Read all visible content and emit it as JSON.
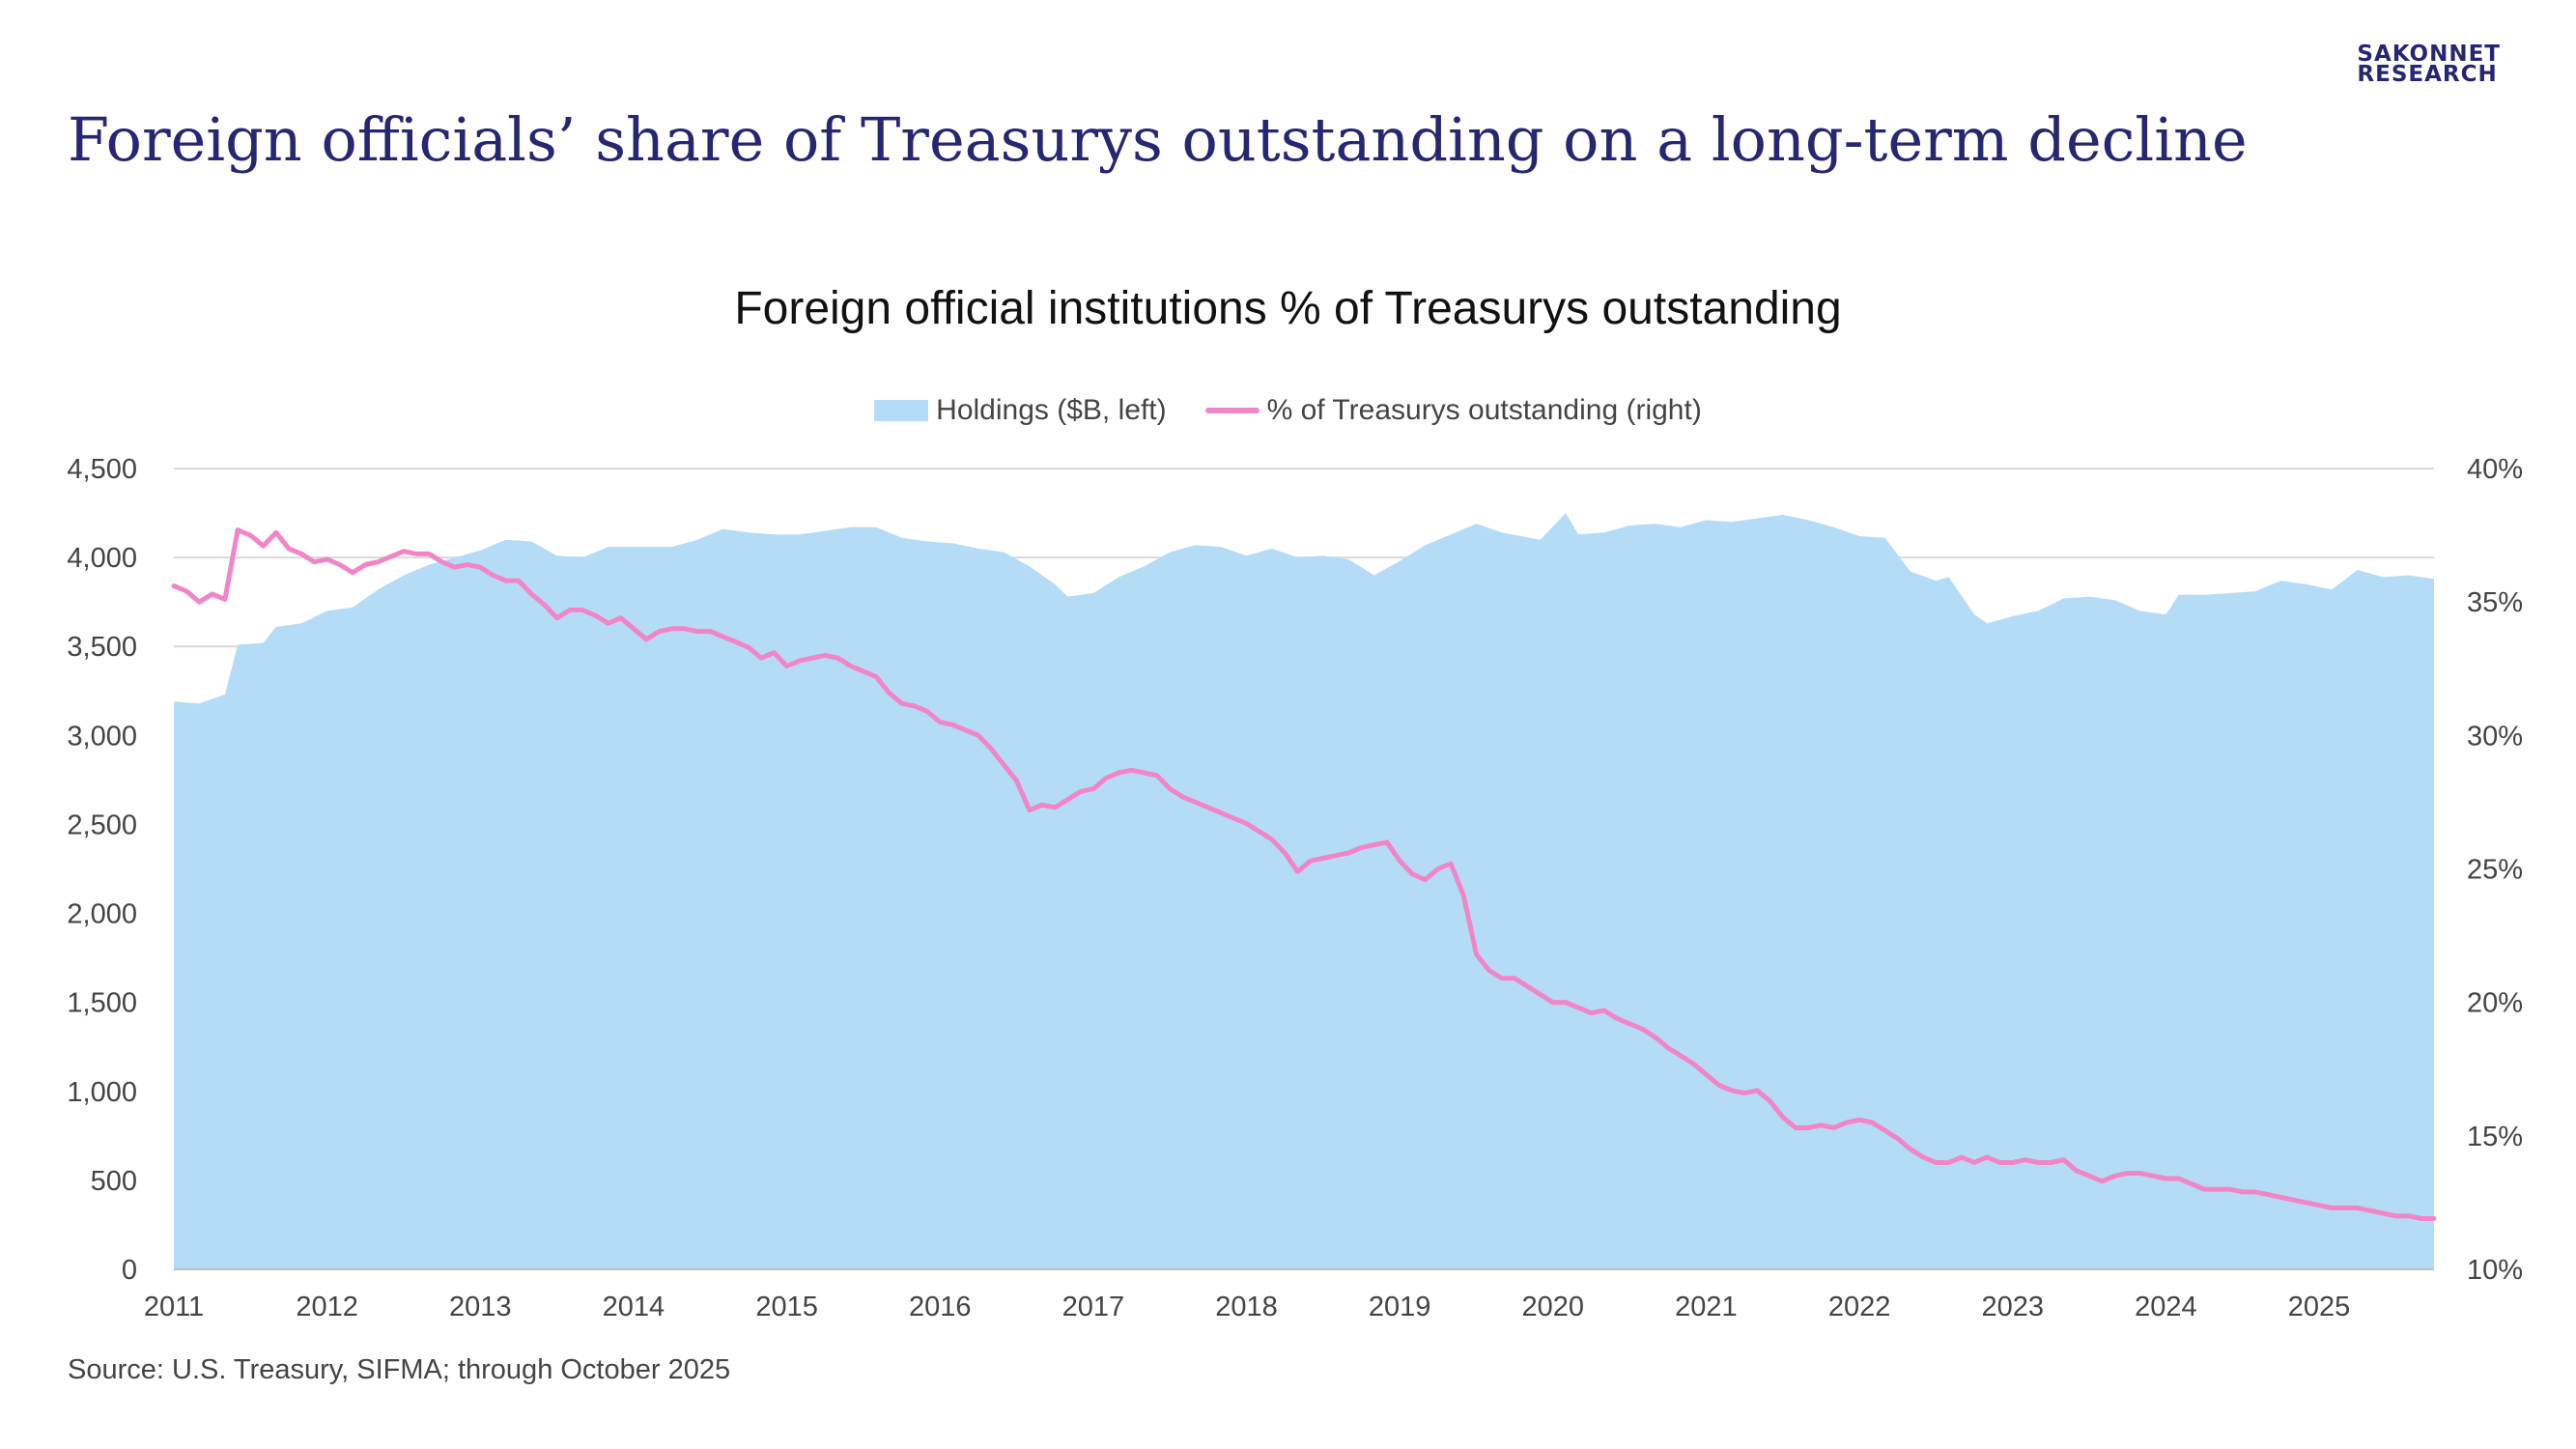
{
  "logo": {
    "line1": "SAKONNET",
    "line2": "RESEARCH"
  },
  "headline": "Foreign officials’ share of Treasurys outstanding on a long-term decline",
  "source": "Source: U.S. Treasury, SIFMA; through October 2025",
  "colors": {
    "area": "#b5dcf6",
    "line": "#f285c8",
    "headline": "#262673",
    "grid": "#d9d9d9"
  },
  "chart_data": {
    "type": "area",
    "title": "Foreign official institutions % of Treasurys outstanding",
    "legend_position": "top",
    "grid": true,
    "x_start": "2011-01",
    "x_end": "2025-10",
    "x_ticks": [
      "2011",
      "2012",
      "2013",
      "2014",
      "2015",
      "2016",
      "2017",
      "2018",
      "2019",
      "2020",
      "2021",
      "2022",
      "2023",
      "2024",
      "2025"
    ],
    "y_left": {
      "min": 0,
      "max": 4500,
      "ticks": [
        "0",
        "500",
        "1,000",
        "1,500",
        "2,000",
        "2,500",
        "3,000",
        "3,500",
        "4,000",
        "4,500"
      ],
      "values": [
        0,
        500,
        1000,
        1500,
        2000,
        2500,
        3000,
        3500,
        4000,
        4500
      ]
    },
    "y_right": {
      "min": 10,
      "max": 40,
      "ticks": [
        "10%",
        "15%",
        "20%",
        "25%",
        "30%",
        "35%",
        "40%"
      ],
      "values": [
        10,
        15,
        20,
        25,
        30,
        35,
        40
      ]
    },
    "series": [
      {
        "name": "Holdings ($B, left)",
        "type": "area",
        "axis": "left",
        "points": [
          [
            "2011-01",
            3190
          ],
          [
            "2011-03",
            3180
          ],
          [
            "2011-05",
            3230
          ],
          [
            "2011-06",
            3510
          ],
          [
            "2011-08",
            3520
          ],
          [
            "2011-09",
            3610
          ],
          [
            "2011-11",
            3630
          ],
          [
            "2012-01",
            3700
          ],
          [
            "2012-03",
            3720
          ],
          [
            "2012-05",
            3820
          ],
          [
            "2012-07",
            3900
          ],
          [
            "2012-09",
            3960
          ],
          [
            "2012-11",
            4000
          ],
          [
            "2013-01",
            4040
          ],
          [
            "2013-03",
            4100
          ],
          [
            "2013-05",
            4090
          ],
          [
            "2013-07",
            4010
          ],
          [
            "2013-09",
            4000
          ],
          [
            "2013-11",
            4060
          ],
          [
            "2014-01",
            4060
          ],
          [
            "2014-04",
            4060
          ],
          [
            "2014-06",
            4100
          ],
          [
            "2014-08",
            4160
          ],
          [
            "2014-10",
            4140
          ],
          [
            "2014-12",
            4130
          ],
          [
            "2015-02",
            4130
          ],
          [
            "2015-04",
            4150
          ],
          [
            "2015-06",
            4170
          ],
          [
            "2015-08",
            4170
          ],
          [
            "2015-10",
            4110
          ],
          [
            "2015-12",
            4090
          ],
          [
            "2016-02",
            4080
          ],
          [
            "2016-04",
            4050
          ],
          [
            "2016-06",
            4030
          ],
          [
            "2016-08",
            3950
          ],
          [
            "2016-10",
            3850
          ],
          [
            "2016-11",
            3780
          ],
          [
            "2017-01",
            3800
          ],
          [
            "2017-03",
            3890
          ],
          [
            "2017-05",
            3950
          ],
          [
            "2017-07",
            4030
          ],
          [
            "2017-09",
            4070
          ],
          [
            "2017-11",
            4060
          ],
          [
            "2018-01",
            4010
          ],
          [
            "2018-03",
            4050
          ],
          [
            "2018-05",
            4000
          ],
          [
            "2018-07",
            4010
          ],
          [
            "2018-09",
            3990
          ],
          [
            "2018-11",
            3900
          ],
          [
            "2019-01",
            3980
          ],
          [
            "2019-03",
            4070
          ],
          [
            "2019-05",
            4130
          ],
          [
            "2019-07",
            4190
          ],
          [
            "2019-09",
            4140
          ],
          [
            "2019-12",
            4100
          ],
          [
            "2020-02",
            4250
          ],
          [
            "2020-03",
            4130
          ],
          [
            "2020-05",
            4140
          ],
          [
            "2020-07",
            4180
          ],
          [
            "2020-09",
            4190
          ],
          [
            "2020-11",
            4170
          ],
          [
            "2021-01",
            4210
          ],
          [
            "2021-03",
            4200
          ],
          [
            "2021-05",
            4220
          ],
          [
            "2021-07",
            4240
          ],
          [
            "2021-09",
            4210
          ],
          [
            "2021-11",
            4170
          ],
          [
            "2022-01",
            4120
          ],
          [
            "2022-03",
            4110
          ],
          [
            "2022-05",
            3920
          ],
          [
            "2022-07",
            3870
          ],
          [
            "2022-08",
            3890
          ],
          [
            "2022-10",
            3680
          ],
          [
            "2022-11",
            3630
          ],
          [
            "2023-01",
            3670
          ],
          [
            "2023-03",
            3700
          ],
          [
            "2023-05",
            3770
          ],
          [
            "2023-07",
            3780
          ],
          [
            "2023-09",
            3760
          ],
          [
            "2023-11",
            3700
          ],
          [
            "2024-01",
            3680
          ],
          [
            "2024-02",
            3790
          ],
          [
            "2024-04",
            3790
          ],
          [
            "2024-06",
            3800
          ],
          [
            "2024-08",
            3810
          ],
          [
            "2024-10",
            3870
          ],
          [
            "2024-12",
            3850
          ],
          [
            "2025-02",
            3820
          ],
          [
            "2025-04",
            3930
          ],
          [
            "2025-06",
            3890
          ],
          [
            "2025-08",
            3900
          ],
          [
            "2025-10",
            3880
          ]
        ]
      },
      {
        "name": "% of Treasurys outstanding (right)",
        "type": "line",
        "axis": "right",
        "points": [
          [
            "2011-01",
            35.6
          ],
          [
            "2011-02",
            35.4
          ],
          [
            "2011-03",
            35.0
          ],
          [
            "2011-04",
            35.3
          ],
          [
            "2011-05",
            35.1
          ],
          [
            "2011-06",
            37.7
          ],
          [
            "2011-07",
            37.5
          ],
          [
            "2011-08",
            37.1
          ],
          [
            "2011-09",
            37.6
          ],
          [
            "2011-10",
            37.0
          ],
          [
            "2011-11",
            36.8
          ],
          [
            "2011-12",
            36.5
          ],
          [
            "2012-01",
            36.6
          ],
          [
            "2012-02",
            36.4
          ],
          [
            "2012-03",
            36.1
          ],
          [
            "2012-04",
            36.4
          ],
          [
            "2012-05",
            36.5
          ],
          [
            "2012-06",
            36.7
          ],
          [
            "2012-07",
            36.9
          ],
          [
            "2012-08",
            36.8
          ],
          [
            "2012-09",
            36.8
          ],
          [
            "2012-10",
            36.5
          ],
          [
            "2012-11",
            36.3
          ],
          [
            "2012-12",
            36.4
          ],
          [
            "2013-01",
            36.3
          ],
          [
            "2013-02",
            36.0
          ],
          [
            "2013-03",
            35.8
          ],
          [
            "2013-04",
            35.8
          ],
          [
            "2013-05",
            35.3
          ],
          [
            "2013-06",
            34.9
          ],
          [
            "2013-07",
            34.4
          ],
          [
            "2013-08",
            34.7
          ],
          [
            "2013-09",
            34.7
          ],
          [
            "2013-10",
            34.5
          ],
          [
            "2013-11",
            34.2
          ],
          [
            "2013-12",
            34.4
          ],
          [
            "2014-01",
            34.0
          ],
          [
            "2014-02",
            33.6
          ],
          [
            "2014-03",
            33.9
          ],
          [
            "2014-04",
            34.0
          ],
          [
            "2014-05",
            34.0
          ],
          [
            "2014-06",
            33.9
          ],
          [
            "2014-07",
            33.9
          ],
          [
            "2014-08",
            33.7
          ],
          [
            "2014-09",
            33.5
          ],
          [
            "2014-10",
            33.3
          ],
          [
            "2014-11",
            32.9
          ],
          [
            "2014-12",
            33.1
          ],
          [
            "2015-01",
            32.6
          ],
          [
            "2015-02",
            32.8
          ],
          [
            "2015-03",
            32.9
          ],
          [
            "2015-04",
            33.0
          ],
          [
            "2015-05",
            32.9
          ],
          [
            "2015-06",
            32.6
          ],
          [
            "2015-07",
            32.4
          ],
          [
            "2015-08",
            32.2
          ],
          [
            "2015-09",
            31.6
          ],
          [
            "2015-10",
            31.2
          ],
          [
            "2015-11",
            31.1
          ],
          [
            "2015-12",
            30.9
          ],
          [
            "2016-01",
            30.5
          ],
          [
            "2016-02",
            30.4
          ],
          [
            "2016-03",
            30.2
          ],
          [
            "2016-04",
            30.0
          ],
          [
            "2016-05",
            29.5
          ],
          [
            "2016-06",
            28.9
          ],
          [
            "2016-07",
            28.3
          ],
          [
            "2016-08",
            27.2
          ],
          [
            "2016-09",
            27.4
          ],
          [
            "2016-10",
            27.3
          ],
          [
            "2016-11",
            27.6
          ],
          [
            "2016-12",
            27.9
          ],
          [
            "2017-01",
            28.0
          ],
          [
            "2017-02",
            28.4
          ],
          [
            "2017-03",
            28.6
          ],
          [
            "2017-04",
            28.7
          ],
          [
            "2017-05",
            28.6
          ],
          [
            "2017-06",
            28.5
          ],
          [
            "2017-07",
            28.0
          ],
          [
            "2017-08",
            27.7
          ],
          [
            "2017-09",
            27.5
          ],
          [
            "2017-10",
            27.3
          ],
          [
            "2017-11",
            27.1
          ],
          [
            "2017-12",
            26.9
          ],
          [
            "2018-01",
            26.7
          ],
          [
            "2018-02",
            26.4
          ],
          [
            "2018-03",
            26.1
          ],
          [
            "2018-04",
            25.6
          ],
          [
            "2018-05",
            24.9
          ],
          [
            "2018-06",
            25.3
          ],
          [
            "2018-07",
            25.4
          ],
          [
            "2018-08",
            25.5
          ],
          [
            "2018-09",
            25.6
          ],
          [
            "2018-10",
            25.8
          ],
          [
            "2018-11",
            25.9
          ],
          [
            "2018-12",
            26.0
          ],
          [
            "2019-01",
            25.3
          ],
          [
            "2019-02",
            24.8
          ],
          [
            "2019-03",
            24.6
          ],
          [
            "2019-04",
            25.0
          ],
          [
            "2019-05",
            25.2
          ],
          [
            "2019-06",
            24.0
          ],
          [
            "2019-07",
            21.8
          ],
          [
            "2019-08",
            21.2
          ],
          [
            "2019-09",
            20.9
          ],
          [
            "2019-10",
            20.9
          ],
          [
            "2019-11",
            20.6
          ],
          [
            "2019-12",
            20.3
          ],
          [
            "2020-01",
            20.0
          ],
          [
            "2020-02",
            20.0
          ],
          [
            "2020-03",
            19.8
          ],
          [
            "2020-04",
            19.6
          ],
          [
            "2020-05",
            19.7
          ],
          [
            "2020-06",
            19.4
          ],
          [
            "2020-07",
            19.2
          ],
          [
            "2020-08",
            19.0
          ],
          [
            "2020-09",
            18.7
          ],
          [
            "2020-10",
            18.3
          ],
          [
            "2020-11",
            18.0
          ],
          [
            "2020-12",
            17.7
          ],
          [
            "2021-01",
            17.3
          ],
          [
            "2021-02",
            16.9
          ],
          [
            "2021-03",
            16.7
          ],
          [
            "2021-04",
            16.6
          ],
          [
            "2021-05",
            16.7
          ],
          [
            "2021-06",
            16.3
          ],
          [
            "2021-07",
            15.7
          ],
          [
            "2021-08",
            15.3
          ],
          [
            "2021-09",
            15.3
          ],
          [
            "2021-10",
            15.4
          ],
          [
            "2021-11",
            15.3
          ],
          [
            "2021-12",
            15.5
          ],
          [
            "2022-01",
            15.6
          ],
          [
            "2022-02",
            15.5
          ],
          [
            "2022-03",
            15.2
          ],
          [
            "2022-04",
            14.9
          ],
          [
            "2022-05",
            14.5
          ],
          [
            "2022-06",
            14.2
          ],
          [
            "2022-07",
            14.0
          ],
          [
            "2022-08",
            14.0
          ],
          [
            "2022-09",
            14.2
          ],
          [
            "2022-10",
            14.0
          ],
          [
            "2022-11",
            14.2
          ],
          [
            "2022-12",
            14.0
          ],
          [
            "2023-01",
            14.0
          ],
          [
            "2023-02",
            14.1
          ],
          [
            "2023-03",
            14.0
          ],
          [
            "2023-04",
            14.0
          ],
          [
            "2023-05",
            14.1
          ],
          [
            "2023-06",
            13.7
          ],
          [
            "2023-07",
            13.5
          ],
          [
            "2023-08",
            13.3
          ],
          [
            "2023-09",
            13.5
          ],
          [
            "2023-10",
            13.6
          ],
          [
            "2023-11",
            13.6
          ],
          [
            "2023-12",
            13.5
          ],
          [
            "2024-01",
            13.4
          ],
          [
            "2024-02",
            13.4
          ],
          [
            "2024-03",
            13.2
          ],
          [
            "2024-04",
            13.0
          ],
          [
            "2024-05",
            13.0
          ],
          [
            "2024-06",
            13.0
          ],
          [
            "2024-07",
            12.9
          ],
          [
            "2024-08",
            12.9
          ],
          [
            "2024-09",
            12.8
          ],
          [
            "2024-10",
            12.7
          ],
          [
            "2024-11",
            12.6
          ],
          [
            "2024-12",
            12.5
          ],
          [
            "2025-01",
            12.4
          ],
          [
            "2025-02",
            12.3
          ],
          [
            "2025-03",
            12.3
          ],
          [
            "2025-04",
            12.3
          ],
          [
            "2025-05",
            12.2
          ],
          [
            "2025-06",
            12.1
          ],
          [
            "2025-07",
            12.0
          ],
          [
            "2025-08",
            12.0
          ],
          [
            "2025-09",
            11.9
          ],
          [
            "2025-10",
            11.9
          ]
        ]
      }
    ]
  }
}
